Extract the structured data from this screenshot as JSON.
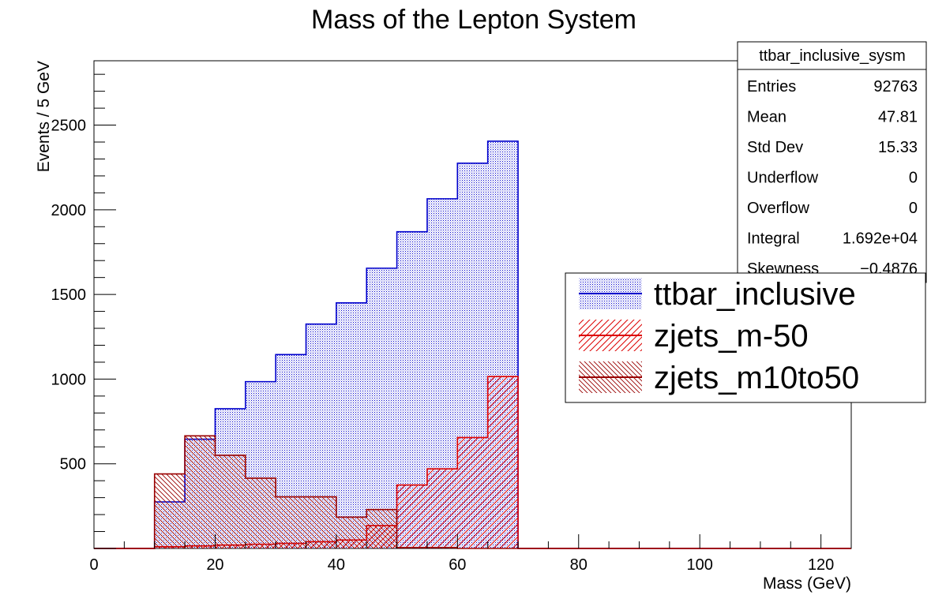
{
  "chart_data": {
    "type": "bar",
    "title": "Mass of the Lepton System",
    "xlabel": "Mass (GeV)",
    "ylabel": "Events / 5 GeV",
    "xlim": [
      0,
      125
    ],
    "ylim": [
      0,
      2880
    ],
    "bin_width": 5,
    "bin_edges_start": [
      0,
      5,
      10,
      15,
      20,
      25,
      30,
      35,
      40,
      45,
      50,
      55,
      60,
      65,
      70,
      75,
      80,
      85,
      90,
      95,
      100,
      105,
      110,
      115,
      120
    ],
    "x_ticks": [
      "0",
      "20",
      "40",
      "60",
      "80",
      "100",
      "120"
    ],
    "y_ticks": [
      "500",
      "1000",
      "1500",
      "2000",
      "2500"
    ],
    "grid": false,
    "series": [
      {
        "name": "ttbar_inclusive",
        "color": "#0000cc",
        "fill": "dots",
        "values": [
          0,
          0,
          275,
          645,
          825,
          985,
          1145,
          1325,
          1450,
          1655,
          1870,
          2065,
          2275,
          2405,
          0,
          0,
          0,
          0,
          0,
          0,
          0,
          0,
          0,
          0,
          0
        ]
      },
      {
        "name": "zjets_m-50",
        "color": "#dd0000",
        "fill": "hatch-right",
        "values": [
          0,
          0,
          10,
          15,
          20,
          25,
          30,
          40,
          50,
          135,
          375,
          470,
          655,
          1015,
          0,
          0,
          0,
          0,
          0,
          0,
          0,
          0,
          0,
          0,
          0
        ]
      },
      {
        "name": "zjets_m10to50",
        "color": "#990000",
        "fill": "hatch-left",
        "values": [
          0,
          0,
          440,
          665,
          550,
          415,
          305,
          305,
          185,
          230,
          5,
          5,
          0,
          0,
          0,
          0,
          0,
          0,
          0,
          0,
          0,
          0,
          0,
          0,
          0
        ]
      }
    ],
    "legend_position": "right",
    "stats_box": {
      "title": "ttbar_inclusive_sysm",
      "rows": [
        {
          "label": "Entries",
          "value": "92763"
        },
        {
          "label": "Mean",
          "value": "47.81"
        },
        {
          "label": "Std Dev",
          "value": "15.33"
        },
        {
          "label": "Underflow",
          "value": "0"
        },
        {
          "label": "Overflow",
          "value": "0"
        },
        {
          "label": "Integral",
          "value": "1.692e+04"
        },
        {
          "label": "Skewness",
          "value": "−0.4876"
        }
      ]
    }
  }
}
